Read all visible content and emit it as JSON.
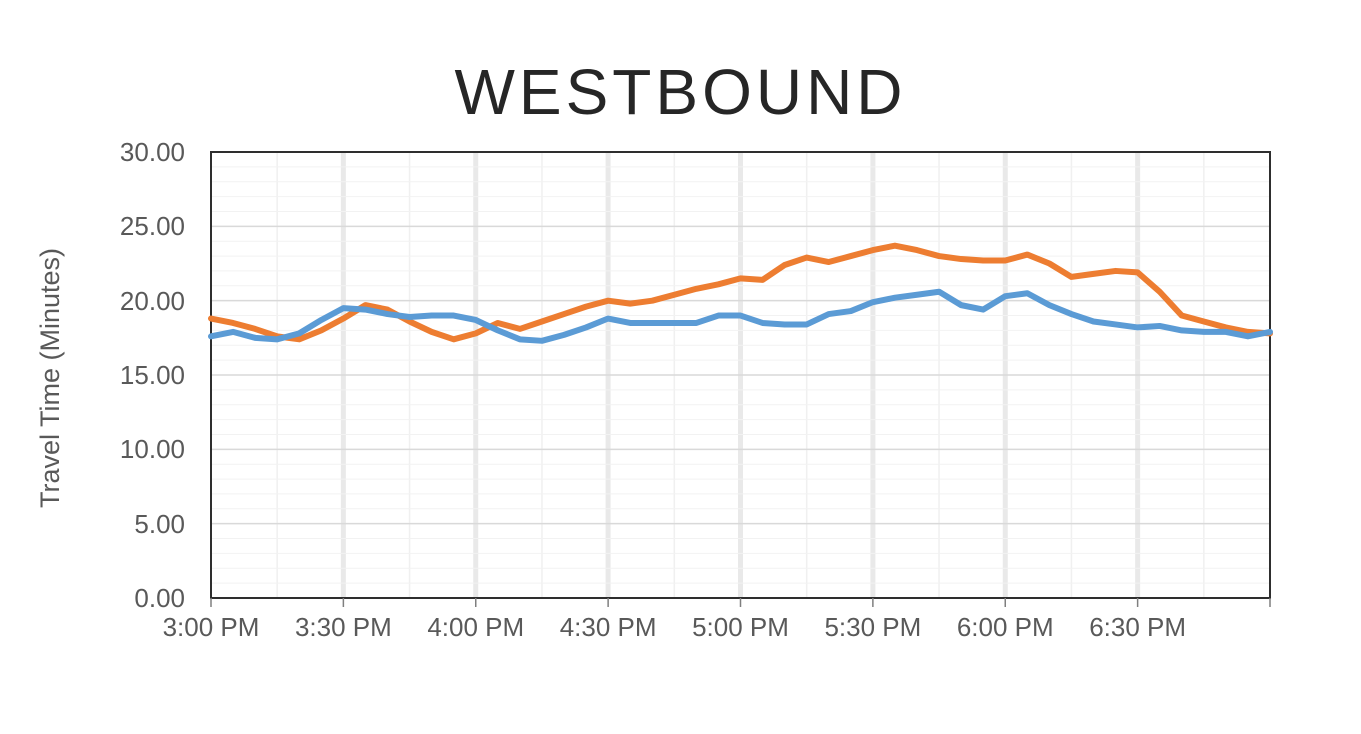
{
  "page": {
    "background_color": "#ffffff"
  },
  "chart_data": {
    "type": "line",
    "title": "WESTBOUND",
    "xlabel": "",
    "ylabel": "Travel Time (Minutes)",
    "ylim": [
      0,
      30
    ],
    "y_major_step": 5,
    "y_minor_step": 1,
    "y_tick_labels": [
      "0.00",
      "5.00",
      "10.00",
      "15.00",
      "20.00",
      "25.00",
      "30.00"
    ],
    "x_tick_labels": [
      "3:00 PM",
      "3:30 PM",
      "4:00 PM",
      "4:30 PM",
      "5:00 PM",
      "5:30 PM",
      "6:00 PM",
      "6:30 PM"
    ],
    "x_range_minutes": [
      0,
      240
    ],
    "x_major_step_minutes": 30,
    "x_minor_step_minutes": 15,
    "grid": "major-and-minor",
    "legend_position": "none",
    "x": [
      "3:00 PM",
      "3:05 PM",
      "3:10 PM",
      "3:15 PM",
      "3:20 PM",
      "3:25 PM",
      "3:30 PM",
      "3:35 PM",
      "3:40 PM",
      "3:45 PM",
      "3:50 PM",
      "3:55 PM",
      "4:00 PM",
      "4:05 PM",
      "4:10 PM",
      "4:15 PM",
      "4:20 PM",
      "4:25 PM",
      "4:30 PM",
      "4:35 PM",
      "4:40 PM",
      "4:45 PM",
      "4:50 PM",
      "4:55 PM",
      "5:00 PM",
      "5:05 PM",
      "5:10 PM",
      "5:15 PM",
      "5:20 PM",
      "5:25 PM",
      "5:30 PM",
      "5:35 PM",
      "5:40 PM",
      "5:45 PM",
      "5:50 PM",
      "5:55 PM",
      "6:00 PM",
      "6:05 PM",
      "6:10 PM",
      "6:15 PM",
      "6:20 PM",
      "6:25 PM",
      "6:30 PM",
      "6:35 PM",
      "6:40 PM",
      "6:45 PM",
      "6:50 PM",
      "6:55 PM",
      "7:00 PM"
    ],
    "series": [
      {
        "name": "orange-series",
        "color": "#ED7D31",
        "values": [
          18.8,
          18.5,
          18.1,
          17.6,
          17.4,
          18.0,
          18.8,
          19.7,
          19.4,
          18.6,
          17.9,
          17.4,
          17.8,
          18.5,
          18.1,
          18.6,
          19.1,
          19.6,
          20.0,
          19.8,
          20.0,
          20.4,
          20.8,
          21.1,
          21.5,
          21.4,
          22.4,
          22.9,
          22.6,
          23.0,
          23.4,
          23.7,
          23.4,
          23.0,
          22.8,
          22.7,
          22.7,
          23.1,
          22.5,
          21.6,
          21.8,
          22.0,
          21.9,
          20.6,
          19.0,
          18.6,
          18.2,
          17.9,
          17.8
        ]
      },
      {
        "name": "blue-series",
        "color": "#5B9BD5",
        "values": [
          17.6,
          17.9,
          17.5,
          17.4,
          17.8,
          18.7,
          19.5,
          19.4,
          19.1,
          18.9,
          19.0,
          19.0,
          18.7,
          18.0,
          17.4,
          17.3,
          17.7,
          18.2,
          18.8,
          18.5,
          18.5,
          18.5,
          18.5,
          19.0,
          19.0,
          18.5,
          18.4,
          18.4,
          19.1,
          19.3,
          19.9,
          20.2,
          20.4,
          20.6,
          19.7,
          19.4,
          20.3,
          20.5,
          19.7,
          19.1,
          18.6,
          18.4,
          18.2,
          18.3,
          18.0,
          17.9,
          17.9,
          17.6,
          17.9
        ]
      }
    ],
    "colors": {
      "title_text": "#262626",
      "axis_text": "#595959",
      "plot_border": "#2e2e2e",
      "major_gridline": "#d9d9d9",
      "minor_gridline": "#f2f2f2",
      "major_vertical_band": "#e9e9e9",
      "minor_vertical_gridline": "#f0f0f0",
      "tick_mark": "#7f7f7f"
    }
  }
}
